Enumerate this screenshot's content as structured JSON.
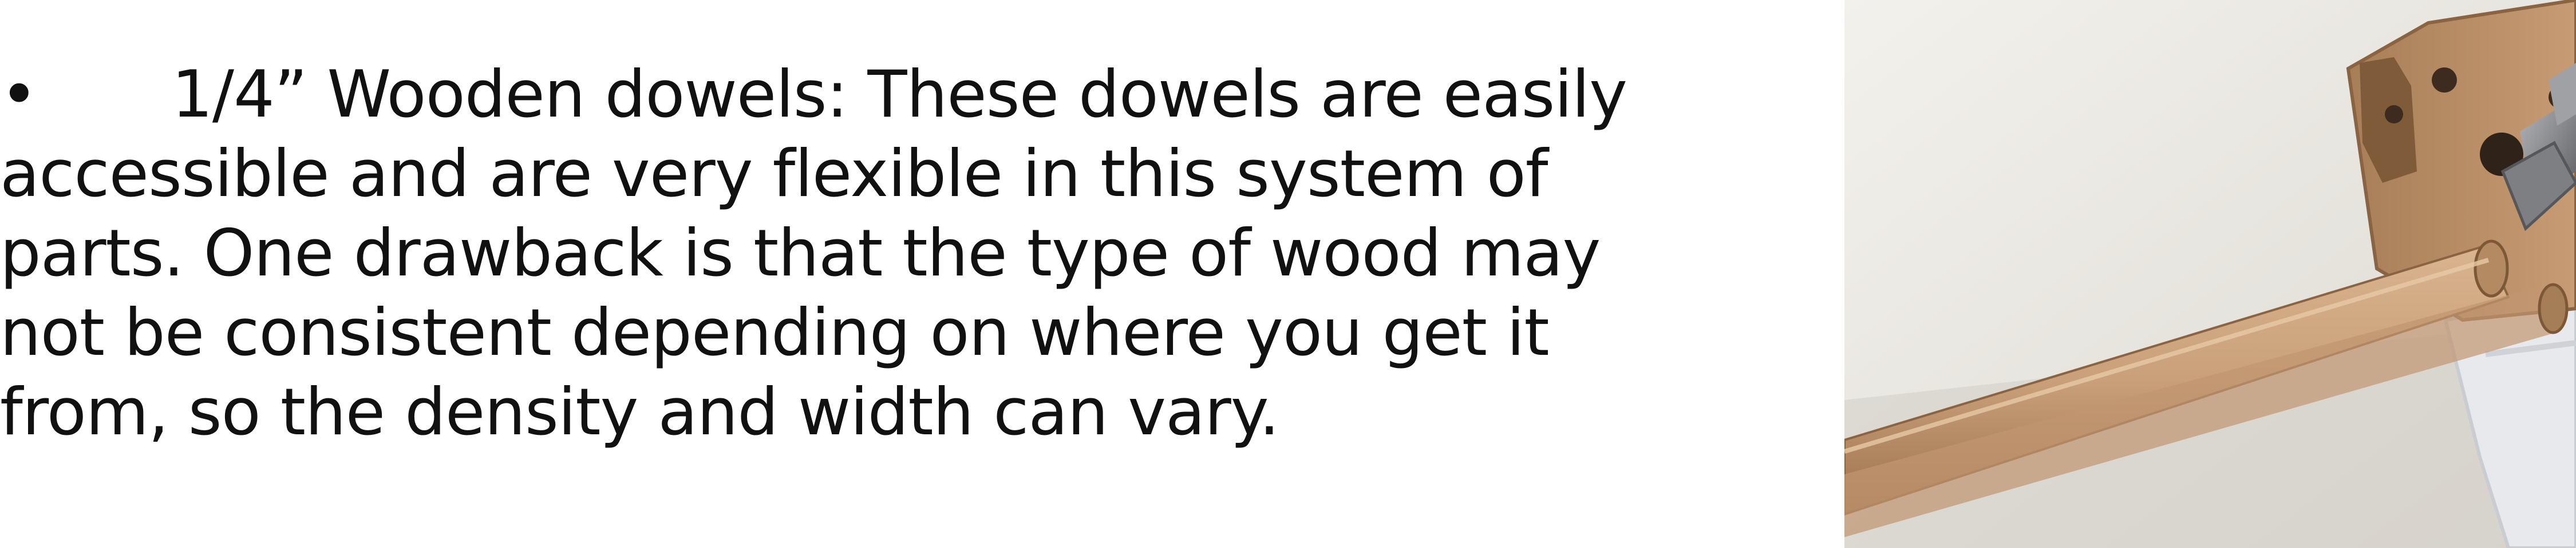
{
  "description": {
    "bullet": "•",
    "lines": [
      "1/4” Wooden dowels: These dowels are easily",
      "accessible and are very flexible in this system of",
      "parts. One drawback is that the type of wood may",
      "not be consistent depending on where you get it",
      "from, so the density and width can vary."
    ]
  },
  "photo": {
    "subject": "wooden dowel inserted through a wooden hub with metal bolt",
    "colors": {
      "background": "#e9e6df",
      "wall": "#f1efea",
      "wood": "#c9a07a",
      "wood_dark": "#a77a52",
      "hub": "#b8906a",
      "metal": "#8b8d90"
    }
  }
}
